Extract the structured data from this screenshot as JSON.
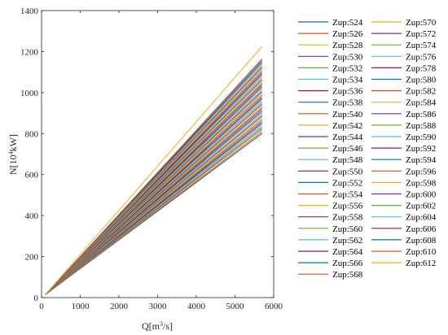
{
  "chart_data": {
    "type": "line",
    "xlabel_main": "Q[m",
    "xlabel_sup": "3",
    "xlabel_tail": "/s]",
    "ylabel_main": "N[10",
    "ylabel_sup": "4",
    "ylabel_tail": "kW]",
    "xlim": [
      0,
      6000
    ],
    "ylim": [
      0,
      1400
    ],
    "xticks": [
      0,
      1000,
      2000,
      3000,
      4000,
      5000,
      6000
    ],
    "yticks": [
      0,
      200,
      400,
      600,
      800,
      1000,
      1200,
      1400
    ],
    "xtick_labels": [
      "0",
      "1000",
      "2000",
      "3000",
      "4000",
      "5000",
      "6000"
    ],
    "ytick_labels": [
      "0",
      "200",
      "400",
      "600",
      "800",
      "1000",
      "1200",
      "1400"
    ],
    "grid": false,
    "legend_position": "right",
    "x_start": 100,
    "x_end": 5700,
    "y_start": 15,
    "series": [
      {
        "name": "Zup:524",
        "y_end": 800,
        "color": "#0072BD"
      },
      {
        "name": "Zup:526",
        "y_end": 808,
        "color": "#D95319"
      },
      {
        "name": "Zup:528",
        "y_end": 817,
        "color": "#EDB120"
      },
      {
        "name": "Zup:530",
        "y_end": 825,
        "color": "#7E2F8E"
      },
      {
        "name": "Zup:532",
        "y_end": 834,
        "color": "#77AC30"
      },
      {
        "name": "Zup:534",
        "y_end": 842,
        "color": "#4DBEEE"
      },
      {
        "name": "Zup:536",
        "y_end": 851,
        "color": "#A2142F"
      },
      {
        "name": "Zup:538",
        "y_end": 859,
        "color": "#0072BD"
      },
      {
        "name": "Zup:540",
        "y_end": 868,
        "color": "#D95319"
      },
      {
        "name": "Zup:542",
        "y_end": 876,
        "color": "#EDB120"
      },
      {
        "name": "Zup:544",
        "y_end": 885,
        "color": "#7E2F8E"
      },
      {
        "name": "Zup:546",
        "y_end": 893,
        "color": "#77AC30"
      },
      {
        "name": "Zup:548",
        "y_end": 902,
        "color": "#4DBEEE"
      },
      {
        "name": "Zup:550",
        "y_end": 910,
        "color": "#A2142F"
      },
      {
        "name": "Zup:552",
        "y_end": 919,
        "color": "#0072BD"
      },
      {
        "name": "Zup:554",
        "y_end": 927,
        "color": "#D95319"
      },
      {
        "name": "Zup:556",
        "y_end": 936,
        "color": "#EDB120"
      },
      {
        "name": "Zup:558",
        "y_end": 944,
        "color": "#7E2F8E"
      },
      {
        "name": "Zup:560",
        "y_end": 953,
        "color": "#77AC30"
      },
      {
        "name": "Zup:562",
        "y_end": 961,
        "color": "#4DBEEE"
      },
      {
        "name": "Zup:564",
        "y_end": 970,
        "color": "#A2142F"
      },
      {
        "name": "Zup:566",
        "y_end": 978,
        "color": "#0072BD"
      },
      {
        "name": "Zup:568",
        "y_end": 987,
        "color": "#D95319"
      },
      {
        "name": "Zup:570",
        "y_end": 995,
        "color": "#EDB120"
      },
      {
        "name": "Zup:572",
        "y_end": 1004,
        "color": "#7E2F8E"
      },
      {
        "name": "Zup:574",
        "y_end": 1012,
        "color": "#77AC30"
      },
      {
        "name": "Zup:576",
        "y_end": 1021,
        "color": "#4DBEEE"
      },
      {
        "name": "Zup:578",
        "y_end": 1029,
        "color": "#A2142F"
      },
      {
        "name": "Zup:580",
        "y_end": 1038,
        "color": "#0072BD"
      },
      {
        "name": "Zup:582",
        "y_end": 1046,
        "color": "#D95319"
      },
      {
        "name": "Zup:584",
        "y_end": 1055,
        "color": "#EDB120"
      },
      {
        "name": "Zup:586",
        "y_end": 1063,
        "color": "#7E2F8E"
      },
      {
        "name": "Zup:588",
        "y_end": 1072,
        "color": "#77AC30"
      },
      {
        "name": "Zup:590",
        "y_end": 1080,
        "color": "#4DBEEE"
      },
      {
        "name": "Zup:592",
        "y_end": 1089,
        "color": "#A2142F"
      },
      {
        "name": "Zup:594",
        "y_end": 1097,
        "color": "#0072BD"
      },
      {
        "name": "Zup:596",
        "y_end": 1106,
        "color": "#D95319"
      },
      {
        "name": "Zup:598",
        "y_end": 1114,
        "color": "#EDB120"
      },
      {
        "name": "Zup:600",
        "y_end": 1123,
        "color": "#7E2F8E"
      },
      {
        "name": "Zup:602",
        "y_end": 1131,
        "color": "#77AC30"
      },
      {
        "name": "Zup:604",
        "y_end": 1140,
        "color": "#4DBEEE"
      },
      {
        "name": "Zup:606",
        "y_end": 1148,
        "color": "#A2142F"
      },
      {
        "name": "Zup:608",
        "y_end": 1157,
        "color": "#0072BD"
      },
      {
        "name": "Zup:610",
        "y_end": 1165,
        "color": "#D95319"
      },
      {
        "name": "Zup:612",
        "y_end": 1225,
        "color": "#EDB120"
      }
    ]
  }
}
